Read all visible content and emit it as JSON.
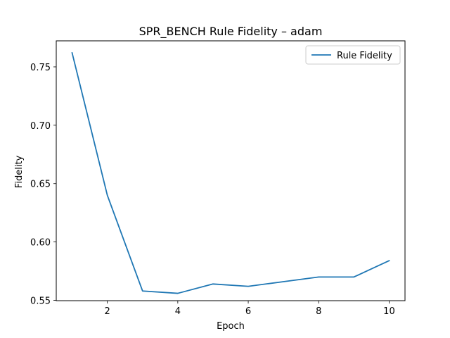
{
  "chart_data": {
    "type": "line",
    "title": "SPR_BENCH Rule Fidelity – adam",
    "xlabel": "Epoch",
    "ylabel": "Fidelity",
    "xlim": [
      0.55,
      10.45
    ],
    "ylim": [
      0.5497,
      0.7723
    ],
    "x_ticks": [
      2,
      4,
      6,
      8,
      10
    ],
    "x_tick_labels": [
      "2",
      "4",
      "6",
      "8",
      "10"
    ],
    "y_ticks": [
      0.55,
      0.6,
      0.65,
      0.7,
      0.75
    ],
    "y_tick_labels": [
      "0.55",
      "0.60",
      "0.65",
      "0.70",
      "0.75"
    ],
    "grid": false,
    "legend_position": "top-right",
    "series": [
      {
        "name": "Rule Fidelity",
        "color": "#1f77b4",
        "x": [
          1,
          2,
          3,
          4,
          5,
          6,
          7,
          8,
          9,
          10
        ],
        "y": [
          0.762,
          0.64,
          0.558,
          0.556,
          0.564,
          0.562,
          0.566,
          0.57,
          0.57,
          0.584
        ]
      }
    ]
  }
}
